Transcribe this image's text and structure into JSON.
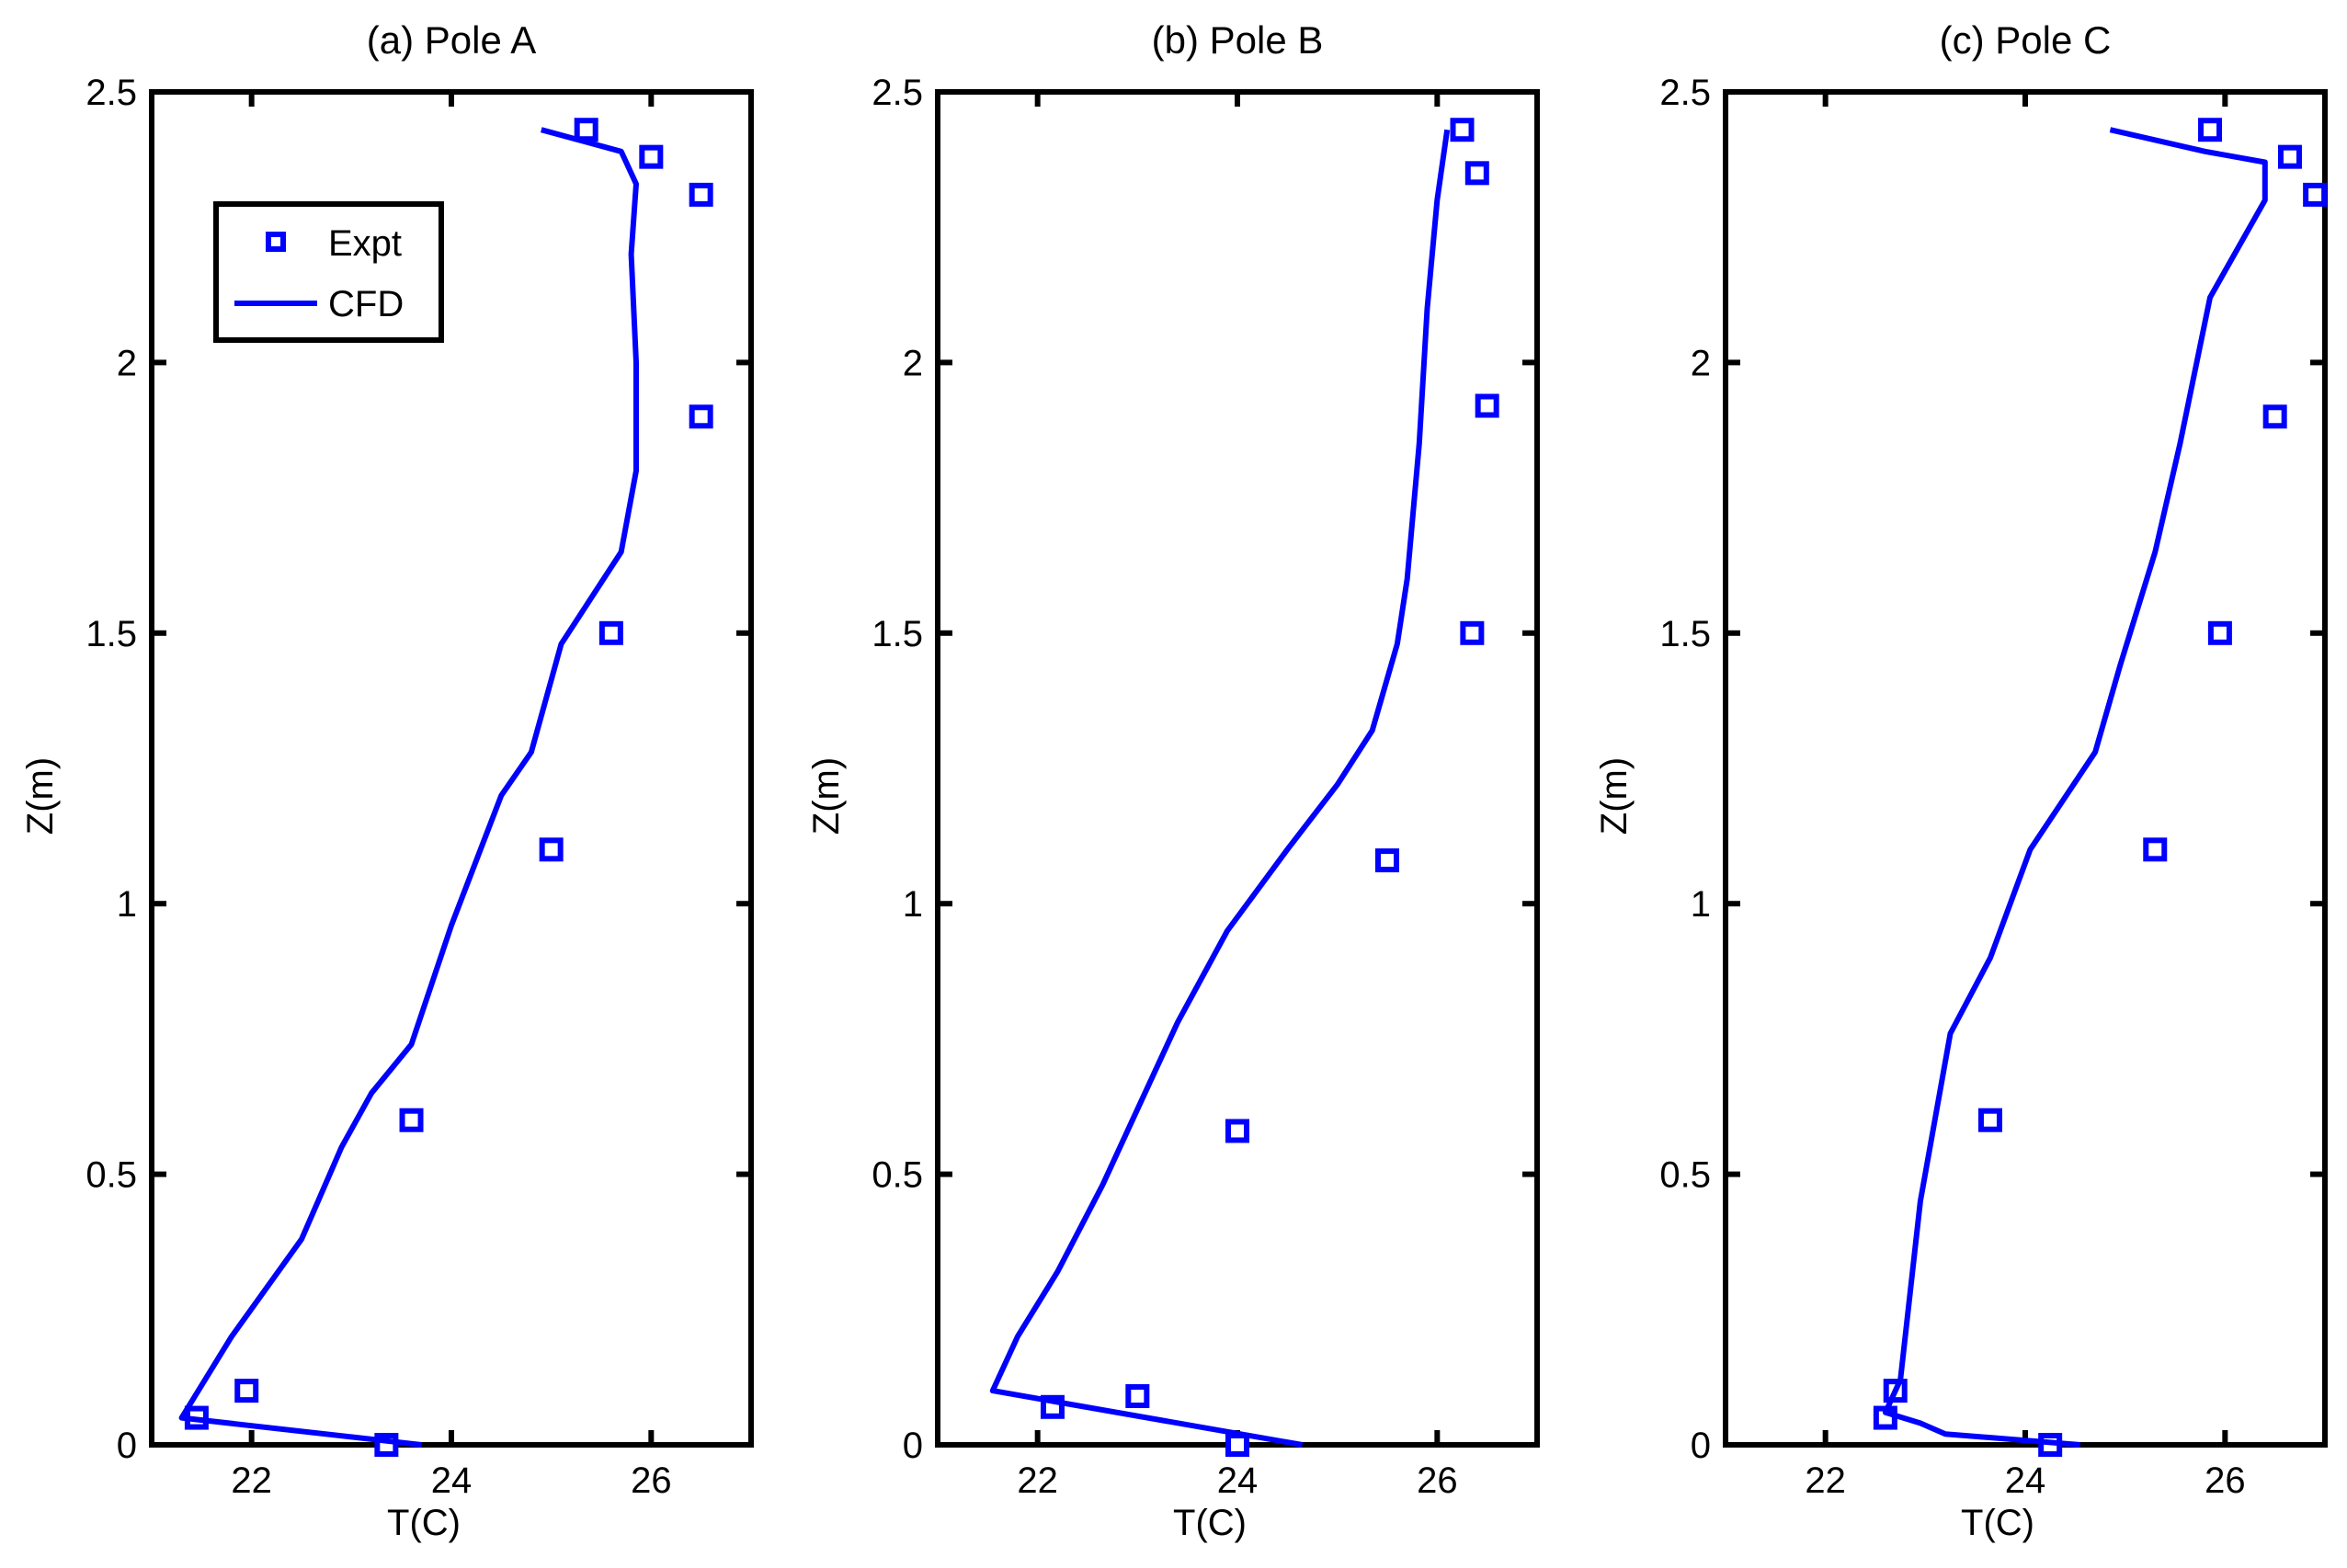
{
  "figure": {
    "background": "#ffffff",
    "series_color": "#0000ff"
  },
  "chart_data": [
    {
      "type": "line",
      "title": "(a) Pole A",
      "xlabel": "T(C)",
      "ylabel": "Z(m)",
      "xlim": [
        21,
        27
      ],
      "ylim": [
        0,
        2.5
      ],
      "xticks": [
        22,
        24,
        26
      ],
      "xtick_labels": [
        "22",
        "24",
        "26"
      ],
      "yticks": [
        0,
        0.5,
        1,
        1.5,
        2,
        2.5
      ],
      "ytick_labels": [
        "0",
        "0.5",
        "1",
        "1.5",
        "2",
        "2.5"
      ],
      "legend": {
        "position": "top-left",
        "entries": [
          "Expt",
          "CFD"
        ]
      },
      "series": [
        {
          "name": "Expt",
          "kind": "scatter",
          "marker": "square",
          "color": "#0000ff",
          "points": [
            [
              23.35,
              0.0
            ],
            [
              21.45,
              0.05
            ],
            [
              21.95,
              0.1
            ],
            [
              23.6,
              0.6
            ],
            [
              25.0,
              1.1
            ],
            [
              25.6,
              1.5
            ],
            [
              26.5,
              1.9
            ],
            [
              26.5,
              2.31
            ],
            [
              26.0,
              2.38
            ],
            [
              25.35,
              2.43
            ]
          ]
        },
        {
          "name": "CFD",
          "kind": "line",
          "color": "#0000ff",
          "points": [
            [
              23.7,
              0.0
            ],
            [
              21.3,
              0.05
            ],
            [
              21.8,
              0.2
            ],
            [
              22.5,
              0.38
            ],
            [
              22.9,
              0.55
            ],
            [
              23.2,
              0.65
            ],
            [
              23.6,
              0.74
            ],
            [
              24.0,
              0.96
            ],
            [
              24.5,
              1.2
            ],
            [
              24.8,
              1.28
            ],
            [
              25.1,
              1.48
            ],
            [
              25.7,
              1.65
            ],
            [
              25.85,
              1.8
            ],
            [
              25.85,
              2.0
            ],
            [
              25.8,
              2.2
            ],
            [
              25.85,
              2.33
            ],
            [
              25.7,
              2.39
            ],
            [
              24.9,
              2.43
            ]
          ]
        }
      ]
    },
    {
      "type": "line",
      "title": "(b) Pole B",
      "xlabel": "T(C)",
      "ylabel": "Z(m)",
      "xlim": [
        21,
        27
      ],
      "ylim": [
        0,
        2.5
      ],
      "xticks": [
        22,
        24,
        26
      ],
      "xtick_labels": [
        "22",
        "24",
        "26"
      ],
      "yticks": [
        0,
        0.5,
        1,
        1.5,
        2,
        2.5
      ],
      "ytick_labels": [
        "0",
        "0.5",
        "1",
        "1.5",
        "2",
        "2.5"
      ],
      "series": [
        {
          "name": "Expt",
          "kind": "scatter",
          "marker": "square",
          "color": "#0000ff",
          "points": [
            [
              24.0,
              0.0
            ],
            [
              22.15,
              0.07
            ],
            [
              23.0,
              0.09
            ],
            [
              24.0,
              0.58
            ],
            [
              25.5,
              1.08
            ],
            [
              26.35,
              1.5
            ],
            [
              26.5,
              1.92
            ],
            [
              26.4,
              2.35
            ],
            [
              26.25,
              2.43
            ]
          ]
        },
        {
          "name": "CFD",
          "kind": "line",
          "color": "#0000ff",
          "points": [
            [
              24.65,
              0.0
            ],
            [
              21.55,
              0.1
            ],
            [
              21.8,
              0.2
            ],
            [
              22.2,
              0.32
            ],
            [
              22.65,
              0.48
            ],
            [
              23.0,
              0.62
            ],
            [
              23.4,
              0.78
            ],
            [
              23.9,
              0.95
            ],
            [
              24.5,
              1.1
            ],
            [
              25.0,
              1.22
            ],
            [
              25.35,
              1.32
            ],
            [
              25.6,
              1.48
            ],
            [
              25.7,
              1.6
            ],
            [
              25.82,
              1.85
            ],
            [
              25.9,
              2.1
            ],
            [
              26.0,
              2.3
            ],
            [
              26.1,
              2.43
            ]
          ]
        }
      ]
    },
    {
      "type": "line",
      "title": "(c) Pole C",
      "xlabel": "T(C)",
      "ylabel": "Z(m)",
      "xlim": [
        21,
        27
      ],
      "ylim": [
        0,
        2.5
      ],
      "xticks": [
        22,
        24,
        26
      ],
      "xtick_labels": [
        "22",
        "24",
        "26"
      ],
      "yticks": [
        0,
        0.5,
        1,
        1.5,
        2,
        2.5
      ],
      "ytick_labels": [
        "0",
        "0.5",
        "1",
        "1.5",
        "2",
        "2.5"
      ],
      "series": [
        {
          "name": "Expt",
          "kind": "scatter",
          "marker": "square",
          "color": "#0000ff",
          "points": [
            [
              24.25,
              0.0
            ],
            [
              22.6,
              0.05
            ],
            [
              22.7,
              0.1
            ],
            [
              23.65,
              0.6
            ],
            [
              25.3,
              1.1
            ],
            [
              25.95,
              1.5
            ],
            [
              26.5,
              1.9
            ],
            [
              26.9,
              2.31
            ],
            [
              26.65,
              2.38
            ],
            [
              25.85,
              2.43
            ]
          ]
        },
        {
          "name": "CFD",
          "kind": "line",
          "color": "#0000ff",
          "points": [
            [
              24.55,
              0.0
            ],
            [
              23.2,
              0.02
            ],
            [
              22.95,
              0.04
            ],
            [
              22.6,
              0.06
            ],
            [
              22.75,
              0.12
            ],
            [
              22.95,
              0.45
            ],
            [
              23.25,
              0.76
            ],
            [
              23.65,
              0.9
            ],
            [
              24.05,
              1.1
            ],
            [
              24.7,
              1.28
            ],
            [
              24.95,
              1.44
            ],
            [
              25.3,
              1.65
            ],
            [
              25.55,
              1.85
            ],
            [
              25.85,
              2.12
            ],
            [
              26.4,
              2.3
            ],
            [
              26.4,
              2.37
            ],
            [
              25.8,
              2.39
            ],
            [
              24.85,
              2.43
            ]
          ]
        }
      ]
    }
  ]
}
